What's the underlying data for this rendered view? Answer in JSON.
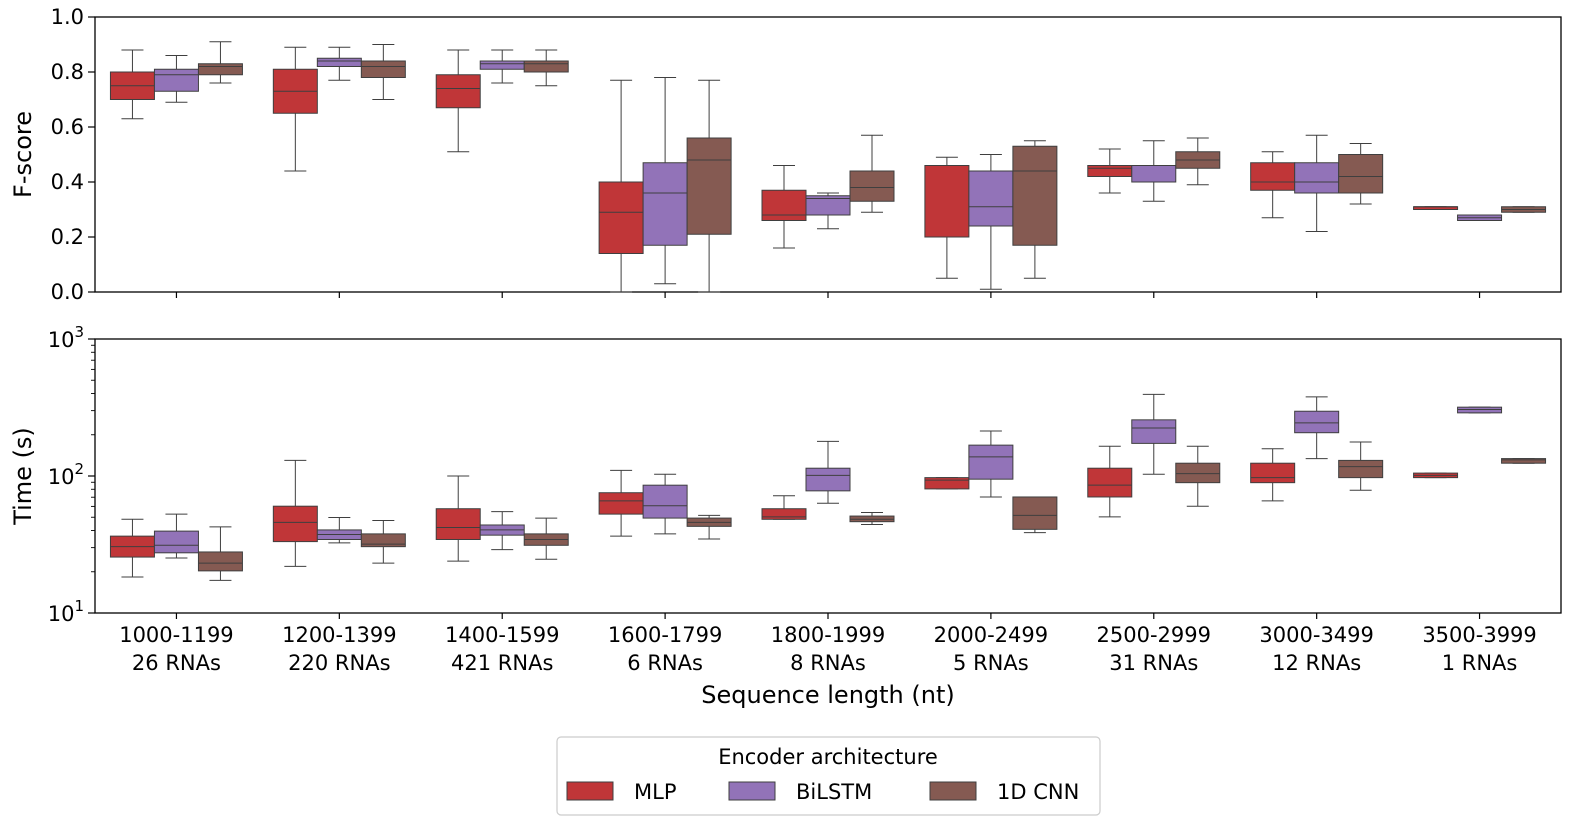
{
  "chart_data": [
    {
      "type": "box",
      "panel": "top",
      "ylabel": "F-score",
      "xlabel": "",
      "ylim": [
        0.0,
        1.0
      ],
      "yscale": "linear",
      "yticks": [
        "0.0",
        "0.2",
        "0.4",
        "0.6",
        "0.8",
        "1.0"
      ],
      "grid": false,
      "categories": [
        "1000-1199",
        "1200-1399",
        "1400-1599",
        "1600-1799",
        "1800-1999",
        "2000-2499",
        "2500-2999",
        "3000-3499",
        "3500-3999"
      ],
      "series": [
        {
          "name": "MLP",
          "color": "#c03638",
          "boxes": [
            {
              "whislo": 0.63,
              "q1": 0.7,
              "med": 0.75,
              "q3": 0.8,
              "whishi": 0.88
            },
            {
              "whislo": 0.44,
              "q1": 0.65,
              "med": 0.73,
              "q3": 0.81,
              "whishi": 0.89
            },
            {
              "whislo": 0.51,
              "q1": 0.67,
              "med": 0.74,
              "q3": 0.79,
              "whishi": 0.88
            },
            {
              "whislo": 0.0,
              "q1": 0.14,
              "med": 0.29,
              "q3": 0.4,
              "whishi": 0.77
            },
            {
              "whislo": 0.16,
              "q1": 0.26,
              "med": 0.28,
              "q3": 0.37,
              "whishi": 0.46
            },
            {
              "whislo": 0.05,
              "q1": 0.2,
              "med": 0.46,
              "q3": 0.46,
              "whishi": 0.49
            },
            {
              "whislo": 0.36,
              "q1": 0.42,
              "med": 0.45,
              "q3": 0.46,
              "whishi": 0.52
            },
            {
              "whislo": 0.27,
              "q1": 0.37,
              "med": 0.4,
              "q3": 0.47,
              "whishi": 0.51
            },
            {
              "whislo": 0.3,
              "q1": 0.3,
              "med": 0.31,
              "q3": 0.31,
              "whishi": 0.31
            }
          ]
        },
        {
          "name": "BiLSTM",
          "color": "#9273b8",
          "boxes": [
            {
              "whislo": 0.69,
              "q1": 0.73,
              "med": 0.79,
              "q3": 0.81,
              "whishi": 0.86
            },
            {
              "whislo": 0.77,
              "q1": 0.82,
              "med": 0.84,
              "q3": 0.85,
              "whishi": 0.89
            },
            {
              "whislo": 0.76,
              "q1": 0.81,
              "med": 0.83,
              "q3": 0.84,
              "whishi": 0.88
            },
            {
              "whislo": 0.03,
              "q1": 0.17,
              "med": 0.36,
              "q3": 0.47,
              "whishi": 0.78
            },
            {
              "whislo": 0.23,
              "q1": 0.28,
              "med": 0.34,
              "q3": 0.35,
              "whishi": 0.36
            },
            {
              "whislo": 0.01,
              "q1": 0.24,
              "med": 0.31,
              "q3": 0.44,
              "whishi": 0.5
            },
            {
              "whislo": 0.33,
              "q1": 0.4,
              "med": 0.46,
              "q3": 0.46,
              "whishi": 0.55
            },
            {
              "whislo": 0.22,
              "q1": 0.36,
              "med": 0.4,
              "q3": 0.47,
              "whishi": 0.57
            },
            {
              "whislo": 0.26,
              "q1": 0.26,
              "med": 0.27,
              "q3": 0.28,
              "whishi": 0.28
            }
          ]
        },
        {
          "name": "1D CNN",
          "color": "#855a52",
          "boxes": [
            {
              "whislo": 0.76,
              "q1": 0.79,
              "med": 0.82,
              "q3": 0.83,
              "whishi": 0.91
            },
            {
              "whislo": 0.7,
              "q1": 0.78,
              "med": 0.82,
              "q3": 0.84,
              "whishi": 0.9
            },
            {
              "whislo": 0.75,
              "q1": 0.8,
              "med": 0.83,
              "q3": 0.84,
              "whishi": 0.88
            },
            {
              "whislo": 0.0,
              "q1": 0.21,
              "med": 0.48,
              "q3": 0.56,
              "whishi": 0.77
            },
            {
              "whislo": 0.29,
              "q1": 0.33,
              "med": 0.38,
              "q3": 0.44,
              "whishi": 0.57
            },
            {
              "whislo": 0.05,
              "q1": 0.17,
              "med": 0.44,
              "q3": 0.53,
              "whishi": 0.55
            },
            {
              "whislo": 0.39,
              "q1": 0.45,
              "med": 0.48,
              "q3": 0.51,
              "whishi": 0.56
            },
            {
              "whislo": 0.32,
              "q1": 0.36,
              "med": 0.42,
              "q3": 0.5,
              "whishi": 0.54
            },
            {
              "whislo": 0.29,
              "q1": 0.29,
              "med": 0.3,
              "q3": 0.31,
              "whishi": 0.31
            }
          ]
        }
      ]
    },
    {
      "type": "box",
      "panel": "bottom",
      "ylabel": "Time (s)",
      "xlabel": "Sequence length (nt)",
      "ylim": [
        10,
        1000
      ],
      "yscale": "log",
      "yticks": [
        {
          "value": 10,
          "base": "10",
          "exp": "1"
        },
        {
          "value": 100,
          "base": "10",
          "exp": "2"
        },
        {
          "value": 1000,
          "base": "10",
          "exp": "3"
        }
      ],
      "grid": false,
      "categories": [
        "1000-1199",
        "1200-1399",
        "1400-1599",
        "1600-1799",
        "1800-1999",
        "2000-2499",
        "2500-2999",
        "3000-3499",
        "3500-3999"
      ],
      "category_counts": [
        "26 RNAs",
        "220 RNAs",
        "421 RNAs",
        "6 RNAs",
        "8 RNAs",
        "5 RNAs",
        "31 RNAs",
        "12 RNAs",
        "1 RNAs"
      ],
      "series": [
        {
          "name": "MLP",
          "color": "#c03638",
          "boxes": [
            {
              "whislo": 18.3,
              "q1": 25.6,
              "med": 30.5,
              "q3": 36.4,
              "whishi": 48.3
            },
            {
              "whislo": 21.9,
              "q1": 33.2,
              "med": 45.9,
              "q3": 60.2,
              "whishi": 130
            },
            {
              "whislo": 23.9,
              "q1": 34.4,
              "med": 42.1,
              "q3": 57.7,
              "whishi": 100
            },
            {
              "whislo": 36.4,
              "q1": 52.7,
              "med": 65.9,
              "q3": 75.5,
              "whishi": 110
            },
            {
              "whislo": 48.3,
              "q1": 48.3,
              "med": 50.3,
              "q3": 57.7,
              "whishi": 71.7
            },
            {
              "whislo": 80.5,
              "q1": 80.5,
              "med": 93.3,
              "q3": 97.3,
              "whishi": 97.3
            },
            {
              "whislo": 50.3,
              "q1": 70.3,
              "med": 85.7,
              "q3": 114,
              "whishi": 165
            },
            {
              "whislo": 65.9,
              "q1": 89.4,
              "med": 97.3,
              "q3": 124,
              "whishi": 158
            },
            {
              "whislo": 97.3,
              "q1": 97.3,
              "med": 101,
              "q3": 105,
              "whishi": 105
            }
          ]
        },
        {
          "name": "BiLSTM",
          "color": "#9273b8",
          "boxes": [
            {
              "whislo": 25.2,
              "q1": 27.5,
              "med": 31.2,
              "q3": 39.6,
              "whishi": 52.7
            },
            {
              "whislo": 32.5,
              "q1": 34.4,
              "med": 37.4,
              "q3": 40.4,
              "whishi": 49.8
            },
            {
              "whislo": 29.0,
              "q1": 37.0,
              "med": 40.4,
              "q3": 43.9,
              "whishi": 55.0
            },
            {
              "whislo": 37.8,
              "q1": 49.3,
              "med": 60.7,
              "q3": 85.7,
              "whishi": 103
            },
            {
              "whislo": 63.2,
              "q1": 77.9,
              "med": 101,
              "q3": 114,
              "whishi": 179
            },
            {
              "whislo": 70.3,
              "q1": 94.8,
              "med": 138,
              "q3": 168,
              "whishi": 213
            },
            {
              "whislo": 103,
              "q1": 173,
              "med": 224,
              "q3": 257,
              "whishi": 394
            },
            {
              "whislo": 134,
              "q1": 207,
              "med": 244,
              "q3": 297,
              "whishi": 378
            },
            {
              "whislo": 289,
              "q1": 289,
              "med": 306,
              "q3": 318,
              "whishi": 318
            }
          ]
        },
        {
          "name": "1D CNN",
          "color": "#855a52",
          "boxes": [
            {
              "whislo": 17.3,
              "q1": 20.3,
              "med": 23.1,
              "q3": 27.9,
              "whishi": 42.5
            },
            {
              "whislo": 23.1,
              "q1": 30.5,
              "med": 31.8,
              "q3": 37.8,
              "whishi": 47.3
            },
            {
              "whislo": 24.7,
              "q1": 31.2,
              "med": 34.4,
              "q3": 37.8,
              "whishi": 49.3
            },
            {
              "whislo": 34.7,
              "q1": 42.9,
              "med": 45.9,
              "q3": 49.3,
              "whishi": 51.6
            },
            {
              "whislo": 44.3,
              "q1": 46.4,
              "med": 48.3,
              "q3": 51.0,
              "whishi": 54.2
            },
            {
              "whislo": 38.6,
              "q1": 40.8,
              "med": 51.6,
              "q3": 70.3,
              "whishi": 70.3
            },
            {
              "whislo": 60.2,
              "q1": 89.4,
              "med": 104,
              "q3": 124,
              "whishi": 165
            },
            {
              "whislo": 78.7,
              "q1": 97.3,
              "med": 117,
              "q3": 130,
              "whishi": 177
            },
            {
              "whislo": 124,
              "q1": 124,
              "med": 131,
              "q3": 134,
              "whishi": 134
            }
          ]
        }
      ]
    }
  ],
  "legend": {
    "title": "Encoder architecture",
    "placement": "bottom-center",
    "entries": [
      {
        "label": "MLP",
        "color": "#c03638"
      },
      {
        "label": "BiLSTM",
        "color": "#9273b8"
      },
      {
        "label": "1D CNN",
        "color": "#855a52"
      }
    ]
  }
}
